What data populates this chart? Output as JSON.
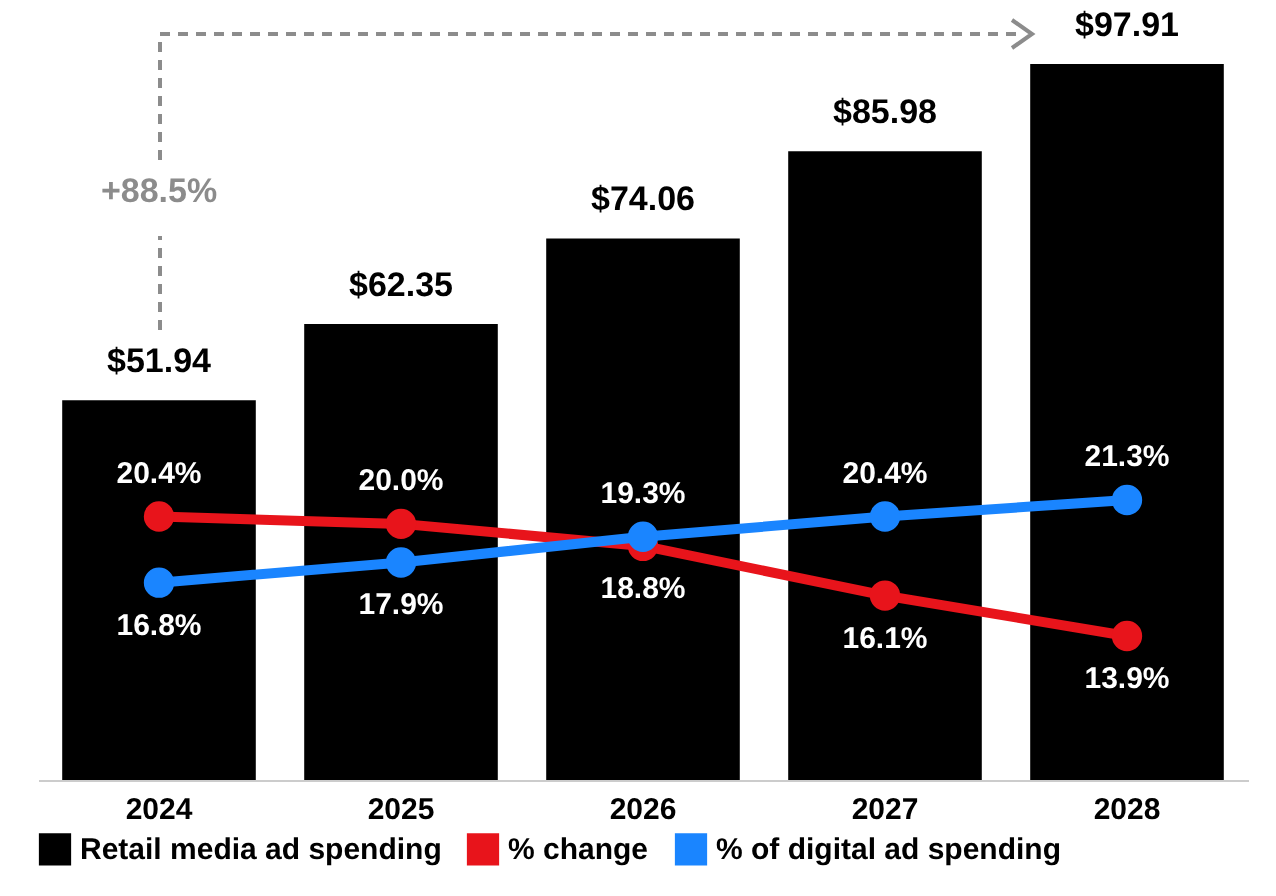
{
  "chart_data": {
    "type": "bar",
    "categories": [
      "2024",
      "2025",
      "2026",
      "2027",
      "2028"
    ],
    "tick_labels": "x",
    "legend": "bottom",
    "marker": "circle",
    "annotations": [
      "+88.5%"
    ],
    "series": [
      {
        "name": "Retail media ad spending",
        "color": "#000000",
        "values": [
          51.94,
          62.35,
          74.06,
          85.98,
          97.91
        ],
        "value_labels": [
          "$51.94",
          "$62.35",
          "$74.06",
          "$85.98",
          "$97.91"
        ]
      },
      {
        "name": "% change",
        "type": "line",
        "axis": "y2",
        "color": "#e8141b",
        "values": [
          20.4,
          20.0,
          18.8,
          16.1,
          13.9
        ],
        "value_labels": [
          "20.4%",
          "20.0%",
          "18.8%",
          "16.1%",
          "13.9%"
        ]
      },
      {
        "name": "% of digital ad spending",
        "type": "line",
        "axis": "y2",
        "color": "#1a85ff",
        "values": [
          16.8,
          17.9,
          19.3,
          20.4,
          21.3
        ],
        "value_labels": [
          "16.8%",
          "17.9%",
          "19.3%",
          "20.4%",
          "21.3%"
        ]
      }
    ]
  }
}
